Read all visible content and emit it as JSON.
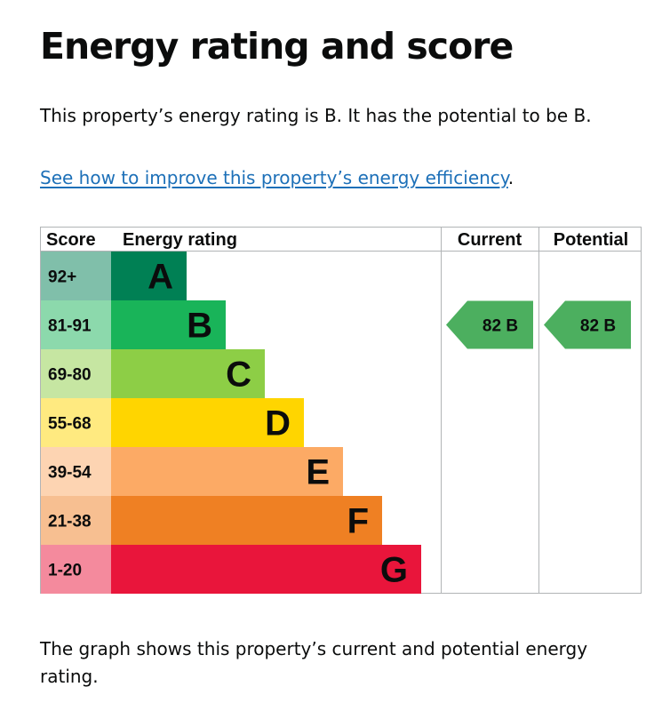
{
  "page": {
    "title": "Energy rating and score",
    "intro": "This property’s energy rating is B. It has the potential to be B.",
    "link_text": "See how to improve this property’s energy efficiency",
    "link_suffix": ".",
    "caption": "The graph shows this property’s current and potential energy rating."
  },
  "chart_data": {
    "type": "bar",
    "headers": {
      "score": "Score",
      "rating": "Energy rating",
      "current": "Current",
      "potential": "Potential"
    },
    "bands": [
      {
        "score_range": "92+",
        "letter": "A",
        "color": "#008054",
        "score_color": "#80bfaa",
        "level": 1
      },
      {
        "score_range": "81-91",
        "letter": "B",
        "color": "#19b459",
        "score_color": "#8cd9ac",
        "level": 2
      },
      {
        "score_range": "69-80",
        "letter": "C",
        "color": "#8dce46",
        "score_color": "#c6e6a2",
        "level": 3
      },
      {
        "score_range": "55-68",
        "letter": "D",
        "color": "#ffd500",
        "score_color": "#ffea80",
        "level": 4
      },
      {
        "score_range": "39-54",
        "letter": "E",
        "color": "#fcaa65",
        "score_color": "#fdd4b2",
        "level": 5
      },
      {
        "score_range": "21-38",
        "letter": "F",
        "color": "#ef8023",
        "score_color": "#f7bf91",
        "level": 6
      },
      {
        "score_range": "1-20",
        "letter": "G",
        "color": "#e9153b",
        "score_color": "#f48a9d",
        "level": 7
      }
    ],
    "current": {
      "score": 82,
      "letter": "B",
      "label": "82 B"
    },
    "potential": {
      "score": 82,
      "letter": "B",
      "label": "82 B"
    },
    "indicator_color": "#4caf5f"
  }
}
